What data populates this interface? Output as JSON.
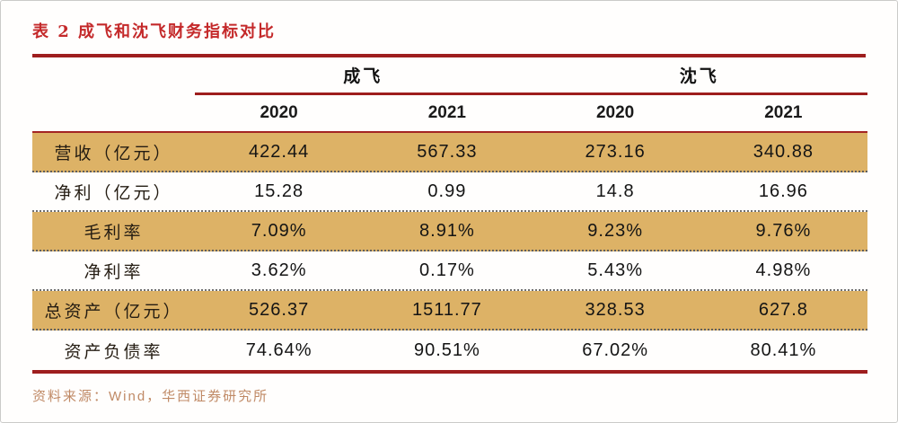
{
  "title": "表 2 成飞和沈飞财务指标对比",
  "source": "资料来源：Wind，华西证券研究所",
  "colors": {
    "title_red": "#c4292a",
    "rule_red": "#9e1e1e",
    "highlight_tan": "#ddb266",
    "source_brown": "#c08a66"
  },
  "chart_data": {
    "type": "table",
    "title": "表 2 成飞和沈飞财务指标对比",
    "column_groups": [
      "成飞",
      "沈飞"
    ],
    "columns": [
      "2020",
      "2021",
      "2020",
      "2021"
    ],
    "rows": [
      [
        "营收（亿元）",
        "422.44",
        "567.33",
        "273.16",
        "340.88"
      ],
      [
        "净利（亿元）",
        "15.28",
        "0.99",
        "14.8",
        "16.96"
      ],
      [
        "毛利率",
        "7.09%",
        "8.91%",
        "9.23%",
        "9.76%"
      ],
      [
        "净利率",
        "3.62%",
        "0.17%",
        "5.43%",
        "4.98%"
      ],
      [
        "总资产（亿元）",
        "526.37",
        "1511.77",
        "328.53",
        "627.8"
      ],
      [
        "资产负债率",
        "74.64%",
        "90.51%",
        "67.02%",
        "80.41%"
      ]
    ]
  },
  "table": {
    "groups": [
      {
        "label": "成飞"
      },
      {
        "label": "沈飞"
      }
    ],
    "year_headers": [
      "2020",
      "2021",
      "2020",
      "2021"
    ],
    "rows": [
      {
        "label": "营收（亿元）",
        "values": [
          "422.44",
          "567.33",
          "273.16",
          "340.88"
        ],
        "highlight": true
      },
      {
        "label": "净利（亿元）",
        "values": [
          "15.28",
          "0.99",
          "14.8",
          "16.96"
        ],
        "highlight": false
      },
      {
        "label": "毛利率",
        "values": [
          "7.09%",
          "8.91%",
          "9.23%",
          "9.76%"
        ],
        "highlight": true
      },
      {
        "label": "净利率",
        "values": [
          "3.62%",
          "0.17%",
          "5.43%",
          "4.98%"
        ],
        "highlight": false
      },
      {
        "label": "总资产（亿元）",
        "values": [
          "526.37",
          "1511.77",
          "328.53",
          "627.8"
        ],
        "highlight": true
      },
      {
        "label": "资产负债率",
        "values": [
          "74.64%",
          "90.51%",
          "67.02%",
          "80.41%"
        ],
        "highlight": false
      }
    ]
  }
}
